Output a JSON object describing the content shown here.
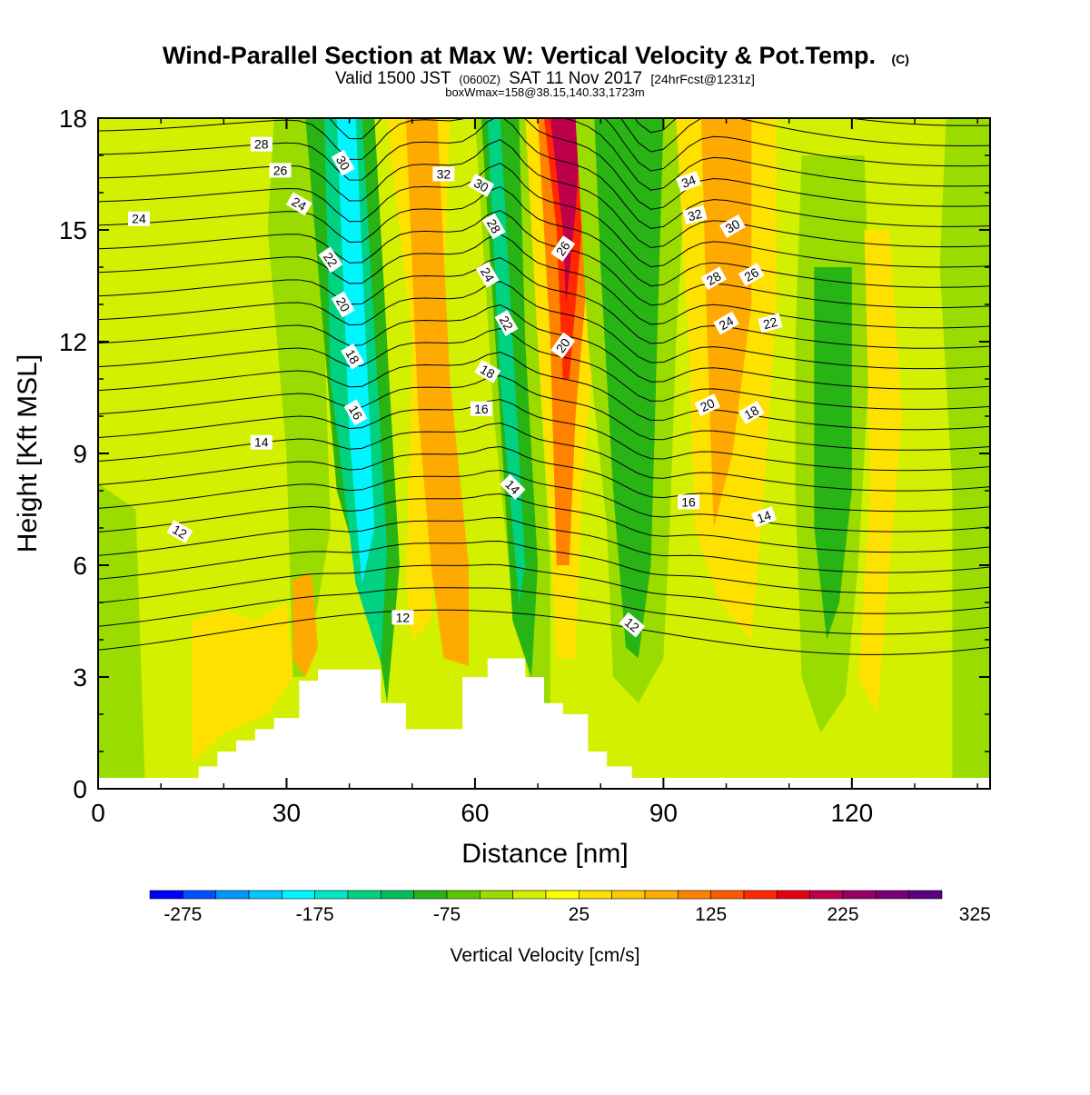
{
  "header": {
    "title_main": "Wind-Parallel Section at Max W: Vertical Velocity & Pot.Temp.",
    "title_mark": "(C)",
    "valid_a": "Valid 1500 JST",
    "valid_b": "(0600Z)",
    "valid_c": "SAT 11 Nov 2017",
    "valid_d": "[24hrFcst@1231z]",
    "box_info": "boxWmax=158@38.15,140.33,1723m"
  },
  "chart_data": {
    "type": "heatmap",
    "xlabel": "Distance [nm]",
    "ylabel": "Height [Kft MSL]",
    "xlim": [
      0,
      142
    ],
    "ylim": [
      0,
      18
    ],
    "x_ticks": [
      0,
      30,
      60,
      90,
      120
    ],
    "y_ticks": [
      0,
      3,
      6,
      9,
      12,
      15,
      18
    ],
    "colorbar": {
      "label": "Vertical Velocity [cm/s]",
      "min": -300,
      "step": 25,
      "tick_labels": [
        "-275",
        "-175",
        "-75",
        "25",
        "125",
        "225",
        "325"
      ],
      "colors": [
        "#0000ff",
        "#0050ff",
        "#0096ff",
        "#00c8ff",
        "#00f5ff",
        "#00e6c8",
        "#00d282",
        "#00be5a",
        "#28b414",
        "#5ac800",
        "#9bdc00",
        "#d2f000",
        "#ffff00",
        "#ffe100",
        "#ffc800",
        "#ffaa00",
        "#ff8200",
        "#ff5a00",
        "#ff2800",
        "#e6000f",
        "#be004b",
        "#960064",
        "#780078",
        "#5a0082"
      ]
    },
    "theta_labels": [
      {
        "v": "28",
        "x": 26,
        "y": 17.3,
        "r": 0
      },
      {
        "v": "26",
        "x": 29,
        "y": 16.6,
        "r": 0
      },
      {
        "v": "24",
        "x": 32,
        "y": 15.7,
        "r": 30
      },
      {
        "v": "24",
        "x": 6.5,
        "y": 15.3,
        "r": 0
      },
      {
        "v": "22",
        "x": 37,
        "y": 14.2,
        "r": 55
      },
      {
        "v": "20",
        "x": 39,
        "y": 13,
        "r": 60
      },
      {
        "v": "18",
        "x": 40.5,
        "y": 11.6,
        "r": 60
      },
      {
        "v": "16",
        "x": 41,
        "y": 10.1,
        "r": 60
      },
      {
        "v": "14",
        "x": 26,
        "y": 9.3,
        "r": 0
      },
      {
        "v": "12",
        "x": 13,
        "y": 6.9,
        "r": 30
      },
      {
        "v": "12",
        "x": 48.5,
        "y": 4.6,
        "r": 0
      },
      {
        "v": "30",
        "x": 39,
        "y": 16.8,
        "r": 60
      },
      {
        "v": "32",
        "x": 55,
        "y": 16.5,
        "r": 0
      },
      {
        "v": "30",
        "x": 61,
        "y": 16.2,
        "r": 30
      },
      {
        "v": "28",
        "x": 63,
        "y": 15.1,
        "r": 60
      },
      {
        "v": "24",
        "x": 62,
        "y": 13.8,
        "r": 60
      },
      {
        "v": "22",
        "x": 65,
        "y": 12.5,
        "r": 60
      },
      {
        "v": "18",
        "x": 62,
        "y": 11.2,
        "r": 30
      },
      {
        "v": "16",
        "x": 61,
        "y": 10.2,
        "r": 0
      },
      {
        "v": "14",
        "x": 66,
        "y": 8.1,
        "r": 45
      },
      {
        "v": "26",
        "x": 74,
        "y": 14.5,
        "r": -55
      },
      {
        "v": "20",
        "x": 74,
        "y": 11.9,
        "r": -55
      },
      {
        "v": "12",
        "x": 85,
        "y": 4.4,
        "r": 40
      },
      {
        "v": "34",
        "x": 94,
        "y": 16.3,
        "r": -20
      },
      {
        "v": "32",
        "x": 95,
        "y": 15.4,
        "r": -15
      },
      {
        "v": "30",
        "x": 101,
        "y": 15.1,
        "r": -30
      },
      {
        "v": "28",
        "x": 98,
        "y": 13.7,
        "r": -30
      },
      {
        "v": "26",
        "x": 104,
        "y": 13.8,
        "r": -30
      },
      {
        "v": "24",
        "x": 100,
        "y": 12.5,
        "r": -30
      },
      {
        "v": "22",
        "x": 107,
        "y": 12.5,
        "r": -15
      },
      {
        "v": "20",
        "x": 97,
        "y": 10.3,
        "r": -25
      },
      {
        "v": "18",
        "x": 104,
        "y": 10.1,
        "r": -30
      },
      {
        "v": "16",
        "x": 94,
        "y": 7.7,
        "r": 0
      },
      {
        "v": "14",
        "x": 106,
        "y": 7.3,
        "r": -20
      }
    ]
  }
}
